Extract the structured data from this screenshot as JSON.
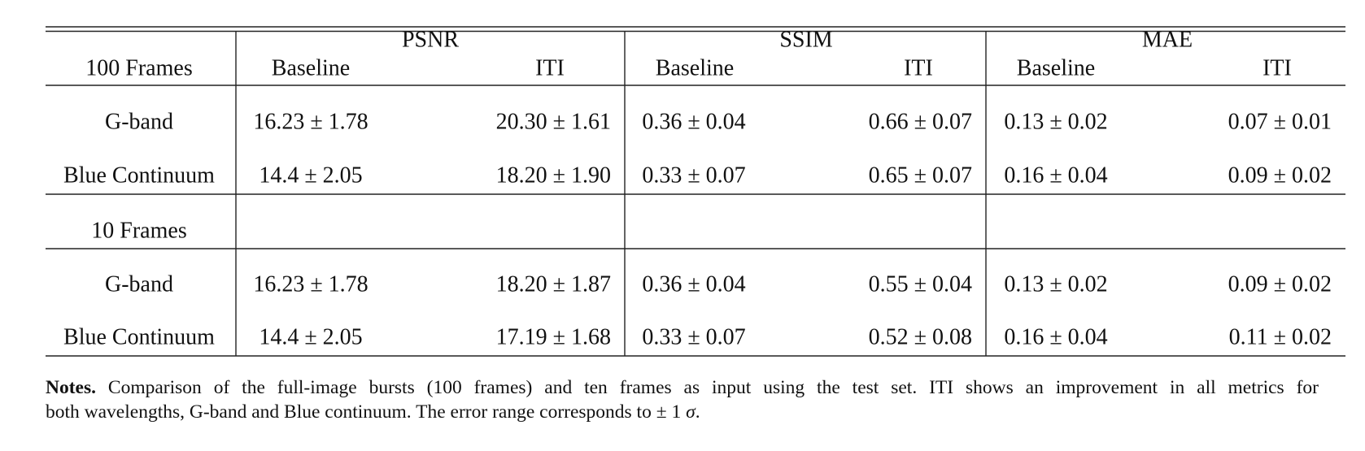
{
  "table": {
    "header": {
      "row_label": "100 Frames",
      "groups": [
        "PSNR",
        "SSIM",
        "MAE"
      ],
      "subheaders": [
        "Baseline",
        "ITI",
        "Baseline",
        "ITI",
        "Baseline",
        "ITI"
      ]
    },
    "sections": [
      {
        "rows": [
          {
            "label": "G-band",
            "cells": [
              "16.23 ± 1.78",
              "20.30 ± 1.61",
              "0.36 ± 0.04",
              "0.66 ± 0.07",
              "0.13 ± 0.02",
              "0.07 ± 0.01"
            ]
          },
          {
            "label": "Blue Continuum",
            "cells": [
              "14.4 ± 2.05",
              "18.20 ± 1.90",
              "0.33 ± 0.07",
              "0.65 ± 0.07",
              "0.16 ± 0.04",
              "0.09 ± 0.02"
            ]
          }
        ]
      },
      {
        "label": "10 Frames",
        "rows": [
          {
            "label": "G-band",
            "cells": [
              "16.23 ± 1.78",
              "18.20 ± 1.87",
              "0.36 ± 0.04",
              "0.55 ± 0.04",
              "0.13 ± 0.02",
              "0.09 ± 0.02"
            ]
          },
          {
            "label": "Blue Continuum",
            "cells": [
              "14.4 ± 2.05",
              "17.19 ± 1.68",
              "0.33 ± 0.07",
              "0.52 ± 0.08",
              "0.16 ± 0.04",
              "0.11 ± 0.02"
            ]
          }
        ]
      }
    ]
  },
  "notes": {
    "label": "Notes.",
    "lines": [
      "Comparison of the full-image bursts (100 frames) and ten frames as input using the test set. ITI shows an improvement in all metrics for",
      "both wavelengths, G-band and Blue continuum. The error range corresponds to ± 1"
    ],
    "symbol": "σ",
    "end": "."
  }
}
